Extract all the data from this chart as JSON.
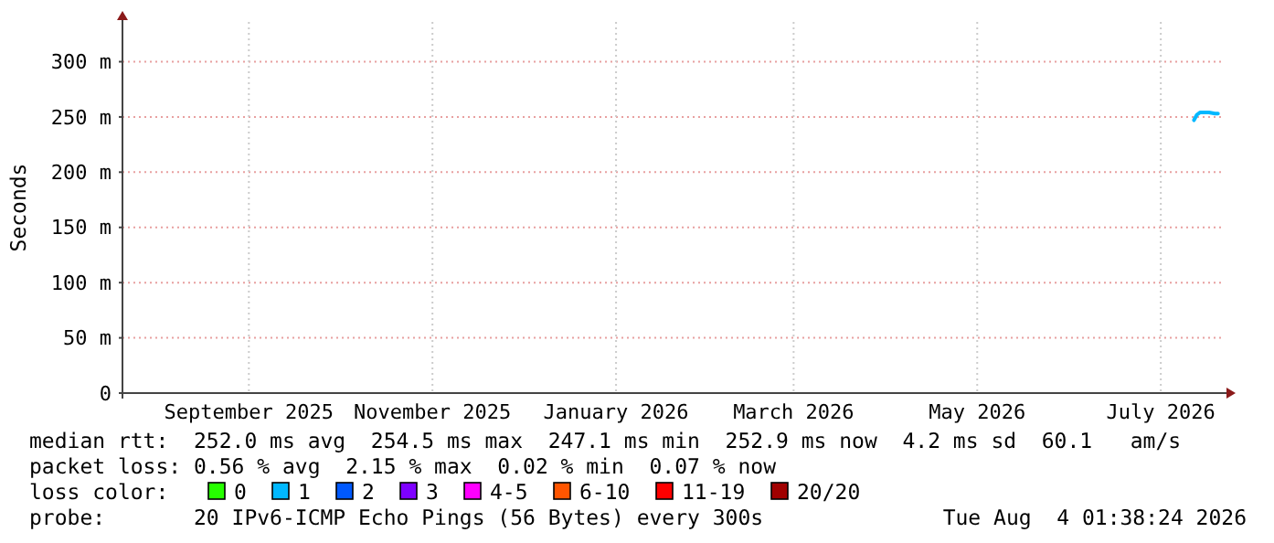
{
  "chart_data": {
    "type": "line",
    "ylabel": "Seconds",
    "x": [
      "2026-07-26",
      "2026-07-27",
      "2026-07-28",
      "2026-07-31",
      "2026-08-02",
      "2026-08-03"
    ],
    "xlim": [
      "2025-08-04",
      "2026-08-04"
    ],
    "xticks": [
      {
        "value": "2025-09-15",
        "label": "September 2025"
      },
      {
        "value": "2025-11-15",
        "label": "November 2025"
      },
      {
        "value": "2026-01-15",
        "label": "January 2026"
      },
      {
        "value": "2026-03-15",
        "label": "March 2026"
      },
      {
        "value": "2026-05-15",
        "label": "May 2026"
      },
      {
        "value": "2026-07-15",
        "label": "July 2026"
      }
    ],
    "ylim": [
      0,
      336
    ],
    "yticks": [
      0,
      {
        "value": 50,
        "label": "50 m"
      },
      {
        "value": 100,
        "label": "100 m"
      },
      {
        "value": 150,
        "label": "150 m"
      },
      {
        "value": 200,
        "label": "200 m"
      },
      {
        "value": 250,
        "label": "250 m"
      },
      {
        "value": 300,
        "label": "300 m"
      }
    ],
    "grid": true,
    "legend": "bottom",
    "legend_title": "loss color:",
    "series": [
      {
        "name": "0",
        "color": "#26ff00",
        "values": [
          null,
          null,
          null,
          null,
          null,
          null
        ]
      },
      {
        "name": "1",
        "color": "#00b8ff",
        "values": [
          247,
          252,
          254,
          254,
          253,
          253
        ]
      },
      {
        "name": "2",
        "color": "#0059ff",
        "values": [
          null,
          null,
          null,
          null,
          null,
          null
        ]
      },
      {
        "name": "3",
        "color": "#7e00ff",
        "values": [
          null,
          null,
          null,
          null,
          null,
          null
        ]
      },
      {
        "name": "4-5",
        "color": "#ff00ff",
        "values": [
          null,
          null,
          null,
          null,
          null,
          null
        ]
      },
      {
        "name": "6-10",
        "color": "#ff5500",
        "values": [
          null,
          null,
          null,
          null,
          null,
          null
        ]
      },
      {
        "name": "11-19",
        "color": "#ff0000",
        "values": [
          null,
          null,
          null,
          null,
          null,
          null
        ]
      },
      {
        "name": "20/20",
        "color": "#a10000",
        "values": [
          null,
          null,
          null,
          null,
          null,
          null
        ]
      }
    ],
    "annotations": [
      "median rtt:  252.0 ms avg  254.5 ms max  247.1 ms min  252.9 ms now  4.2 ms sd  60.1   am/s",
      "packet loss: 0.56 % avg  2.15 % max  0.02 % min  0.07 % now",
      "probe:       20 IPv6-ICMP Echo Pings (56 Bytes) every 300s",
      "Tue Aug  4 01:38:24 2026"
    ]
  }
}
